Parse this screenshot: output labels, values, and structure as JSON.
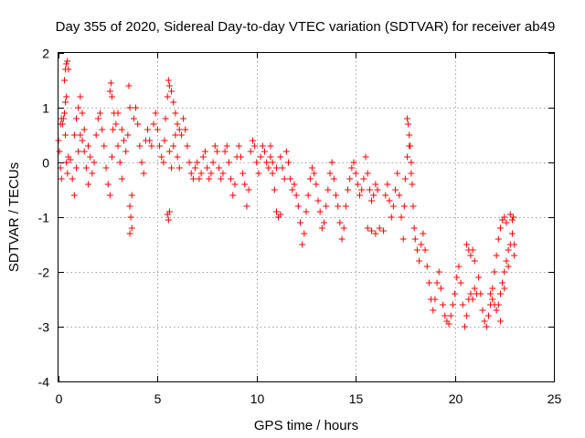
{
  "chart_data": {
    "type": "scatter",
    "title": "Day 355 of 2020, Sidereal Day-to-day VTEC variation (SDTVAR) for receiver ab49",
    "xlabel": "GPS time / hours",
    "ylabel": "SDTVAR / TECUs",
    "xlim": [
      0,
      25
    ],
    "ylim": [
      -4,
      2
    ],
    "xticks": [
      0,
      5,
      10,
      15,
      20,
      25
    ],
    "yticks": [
      -4,
      -3,
      -2,
      -1,
      0,
      1,
      2
    ],
    "grid": true,
    "marker": "plus",
    "series": [
      {
        "name": "SDTVAR",
        "color": "#ff0000",
        "points": [
          [
            0.0,
            0.4
          ],
          [
            0.05,
            0.2
          ],
          [
            0.1,
            -0.1
          ],
          [
            0.15,
            -0.3
          ],
          [
            0.1,
            0.7
          ],
          [
            0.15,
            0.8
          ],
          [
            0.2,
            0.7
          ],
          [
            0.25,
            0.8
          ],
          [
            0.3,
            0.9
          ],
          [
            0.35,
            0.5
          ],
          [
            0.35,
            1.1
          ],
          [
            0.4,
            1.2
          ],
          [
            0.3,
            1.5
          ],
          [
            0.35,
            1.7
          ],
          [
            0.4,
            1.8
          ],
          [
            0.45,
            1.85
          ],
          [
            0.5,
            1.7
          ],
          [
            0.4,
            0.0
          ],
          [
            0.45,
            -0.2
          ],
          [
            0.5,
            0.1
          ],
          [
            0.6,
            0.05
          ],
          [
            0.7,
            -0.3
          ],
          [
            0.8,
            -0.6
          ],
          [
            0.9,
            -0.1
          ],
          [
            1.0,
            0.2
          ],
          [
            1.1,
            0.5
          ],
          [
            1.2,
            0.4
          ],
          [
            1.3,
            0.2
          ],
          [
            1.4,
            -0.1
          ],
          [
            1.5,
            -0.4
          ],
          [
            0.8,
            0.5
          ],
          [
            0.9,
            0.8
          ],
          [
            1.0,
            1.0
          ],
          [
            1.1,
            1.2
          ],
          [
            1.2,
            0.9
          ],
          [
            1.3,
            0.6
          ],
          [
            1.5,
            0.3
          ],
          [
            1.6,
            0.1
          ],
          [
            1.7,
            -0.2
          ],
          [
            1.8,
            0.0
          ],
          [
            1.9,
            0.5
          ],
          [
            2.0,
            0.8
          ],
          [
            2.1,
            0.9
          ],
          [
            2.2,
            0.6
          ],
          [
            2.3,
            0.3
          ],
          [
            2.4,
            -0.1
          ],
          [
            2.5,
            -0.4
          ],
          [
            2.6,
            -0.6
          ],
          [
            2.7,
            0.1
          ],
          [
            2.75,
            0.6
          ],
          [
            2.6,
            1.3
          ],
          [
            2.65,
            1.45
          ],
          [
            2.7,
            1.2
          ],
          [
            2.8,
            0.9
          ],
          [
            2.9,
            0.7
          ],
          [
            3.0,
            0.3
          ],
          [
            3.1,
            0.0
          ],
          [
            3.2,
            -0.3
          ],
          [
            3.0,
            0.9
          ],
          [
            3.2,
            0.6
          ],
          [
            3.3,
            0.4
          ],
          [
            3.4,
            0.2
          ],
          [
            3.5,
            0.5
          ],
          [
            3.55,
            1.4
          ],
          [
            3.6,
            1.0
          ],
          [
            3.6,
            -0.8
          ],
          [
            3.65,
            -1.0
          ],
          [
            3.7,
            -0.6
          ],
          [
            3.6,
            -1.3
          ],
          [
            3.7,
            -1.2
          ],
          [
            3.8,
            0.8
          ],
          [
            3.9,
            1.0
          ],
          [
            4.0,
            0.7
          ],
          [
            4.1,
            0.3
          ],
          [
            4.2,
            0.0
          ],
          [
            4.3,
            -0.2
          ],
          [
            4.4,
            0.4
          ],
          [
            4.5,
            0.6
          ],
          [
            4.6,
            0.4
          ],
          [
            4.7,
            0.3
          ],
          [
            4.8,
            0.7
          ],
          [
            4.9,
            0.9
          ],
          [
            5.0,
            0.6
          ],
          [
            5.1,
            0.3
          ],
          [
            5.2,
            0.1
          ],
          [
            5.3,
            0.0
          ],
          [
            5.35,
            0.4
          ],
          [
            5.4,
            0.8
          ],
          [
            5.5,
            1.2
          ],
          [
            5.55,
            1.5
          ],
          [
            5.6,
            1.4
          ],
          [
            5.7,
            1.3
          ],
          [
            5.8,
            1.1
          ],
          [
            5.9,
            0.9
          ],
          [
            6.0,
            0.7
          ],
          [
            6.1,
            0.6
          ],
          [
            6.2,
            0.5
          ],
          [
            6.3,
            0.8
          ],
          [
            6.4,
            0.6
          ],
          [
            6.5,
            0.3
          ],
          [
            5.5,
            -0.95
          ],
          [
            5.55,
            -1.05
          ],
          [
            5.6,
            -0.9
          ],
          [
            5.6,
            0.2
          ],
          [
            5.7,
            -0.1
          ],
          [
            5.8,
            0.3
          ],
          [
            5.9,
            0.5
          ],
          [
            6.0,
            0.1
          ],
          [
            6.1,
            -0.1
          ],
          [
            6.6,
            0.0
          ],
          [
            6.7,
            -0.2
          ],
          [
            6.8,
            -0.3
          ],
          [
            6.9,
            -0.1
          ],
          [
            7.0,
            0.0
          ],
          [
            7.1,
            -0.3
          ],
          [
            7.2,
            -0.2
          ],
          [
            7.3,
            0.1
          ],
          [
            7.4,
            0.2
          ],
          [
            7.5,
            -0.1
          ],
          [
            7.6,
            -0.3
          ],
          [
            7.7,
            -0.2
          ],
          [
            7.8,
            0.0
          ],
          [
            7.9,
            0.3
          ],
          [
            8.0,
            0.2
          ],
          [
            8.1,
            -0.1
          ],
          [
            8.2,
            -0.3
          ],
          [
            8.3,
            -0.2
          ],
          [
            8.4,
            0.2
          ],
          [
            8.5,
            0.3
          ],
          [
            8.6,
            0.0
          ],
          [
            8.7,
            -0.3
          ],
          [
            8.8,
            -0.6
          ],
          [
            8.9,
            -0.4
          ],
          [
            9.0,
            0.1
          ],
          [
            9.1,
            0.3
          ],
          [
            9.2,
            0.1
          ],
          [
            9.3,
            -0.2
          ],
          [
            9.4,
            -0.4
          ],
          [
            9.5,
            -0.8
          ],
          [
            9.6,
            -0.5
          ],
          [
            9.7,
            0.2
          ],
          [
            9.8,
            0.4
          ],
          [
            9.9,
            0.3
          ],
          [
            10.0,
            0.0
          ],
          [
            10.1,
            -0.2
          ],
          [
            10.2,
            0.1
          ],
          [
            10.3,
            0.3
          ],
          [
            10.4,
            0.2
          ],
          [
            10.5,
            0.0
          ],
          [
            10.6,
            -0.1
          ],
          [
            10.7,
            0.1
          ],
          [
            10.8,
            -0.2
          ],
          [
            10.9,
            -0.5
          ],
          [
            11.0,
            -0.9
          ],
          [
            11.1,
            -1.0
          ],
          [
            11.2,
            -0.95
          ],
          [
            10.7,
            0.3
          ],
          [
            10.8,
            0.0
          ],
          [
            11.0,
            -0.1
          ],
          [
            11.2,
            0.1
          ],
          [
            11.3,
            -0.1
          ],
          [
            11.4,
            -0.3
          ],
          [
            11.5,
            0.2
          ],
          [
            11.6,
            0.0
          ],
          [
            11.7,
            -0.3
          ],
          [
            11.8,
            -0.5
          ],
          [
            11.9,
            -0.4
          ],
          [
            12.0,
            -0.6
          ],
          [
            12.1,
            -0.8
          ],
          [
            12.2,
            -1.1
          ],
          [
            12.3,
            -1.5
          ],
          [
            12.4,
            -1.3
          ],
          [
            12.5,
            -0.9
          ],
          [
            12.6,
            -0.6
          ],
          [
            12.7,
            -0.3
          ],
          [
            12.8,
            -0.1
          ],
          [
            12.9,
            -0.2
          ],
          [
            13.0,
            -0.4
          ],
          [
            13.1,
            -0.7
          ],
          [
            13.2,
            -0.9
          ],
          [
            13.3,
            -1.2
          ],
          [
            13.4,
            -1.1
          ],
          [
            13.5,
            -0.8
          ],
          [
            13.6,
            -0.5
          ],
          [
            13.7,
            -0.2
          ],
          [
            13.8,
            0.0
          ],
          [
            13.9,
            -0.3
          ],
          [
            14.0,
            -0.6
          ],
          [
            14.1,
            -0.8
          ],
          [
            14.2,
            -1.1
          ],
          [
            14.3,
            -1.4
          ],
          [
            14.4,
            -1.2
          ],
          [
            14.5,
            -0.8
          ],
          [
            14.6,
            -0.5
          ],
          [
            14.7,
            -0.3
          ],
          [
            14.8,
            -0.1
          ],
          [
            14.9,
            0.0
          ],
          [
            15.0,
            -0.2
          ],
          [
            15.1,
            -0.4
          ],
          [
            15.2,
            -0.6
          ],
          [
            15.3,
            -0.5
          ],
          [
            15.4,
            -0.3
          ],
          [
            15.5,
            0.1
          ],
          [
            15.6,
            -0.2
          ],
          [
            15.7,
            -0.5
          ],
          [
            15.8,
            -0.7
          ],
          [
            15.9,
            -0.6
          ],
          [
            16.0,
            -0.4
          ],
          [
            16.1,
            -0.5
          ],
          [
            15.6,
            -1.2
          ],
          [
            15.8,
            -1.25
          ],
          [
            16.0,
            -1.3
          ],
          [
            16.2,
            -1.2
          ],
          [
            16.4,
            -1.25
          ],
          [
            16.5,
            -0.6
          ],
          [
            16.6,
            -0.4
          ],
          [
            16.7,
            -0.7
          ],
          [
            16.8,
            -1.0
          ],
          [
            16.9,
            -0.8
          ],
          [
            17.0,
            -0.5
          ],
          [
            17.1,
            -0.2
          ],
          [
            17.2,
            -0.6
          ],
          [
            17.3,
            -1.0
          ],
          [
            17.4,
            -1.4
          ],
          [
            17.45,
            -0.8
          ],
          [
            17.5,
            -0.3
          ],
          [
            17.6,
            0.1
          ],
          [
            17.7,
            0.3
          ],
          [
            17.8,
            -0.2
          ],
          [
            17.6,
            0.8
          ],
          [
            17.65,
            0.7
          ],
          [
            17.7,
            0.5
          ],
          [
            17.75,
            0.3
          ],
          [
            17.8,
            0.0
          ],
          [
            17.85,
            -0.4
          ],
          [
            17.9,
            -0.8
          ],
          [
            17.95,
            -1.2
          ],
          [
            18.0,
            -1.4
          ],
          [
            18.1,
            -1.6
          ],
          [
            18.2,
            -1.8
          ],
          [
            18.3,
            -1.5
          ],
          [
            18.4,
            -1.3
          ],
          [
            18.5,
            -1.6
          ],
          [
            18.6,
            -1.9
          ],
          [
            18.7,
            -2.2
          ],
          [
            18.8,
            -2.5
          ],
          [
            18.9,
            -2.7
          ],
          [
            19.0,
            -2.5
          ],
          [
            19.1,
            -2.2
          ],
          [
            19.2,
            -2.0
          ],
          [
            19.3,
            -2.3
          ],
          [
            19.4,
            -2.6
          ],
          [
            19.5,
            -2.8
          ],
          [
            19.6,
            -2.9
          ],
          [
            19.7,
            -2.95
          ],
          [
            19.8,
            -2.8
          ],
          [
            19.9,
            -2.6
          ],
          [
            20.0,
            -2.4
          ],
          [
            20.1,
            -2.1
          ],
          [
            20.2,
            -1.9
          ],
          [
            20.3,
            -2.2
          ],
          [
            20.4,
            -2.6
          ],
          [
            20.5,
            -3.0
          ],
          [
            20.6,
            -2.8
          ],
          [
            20.7,
            -2.5
          ],
          [
            20.8,
            -2.4
          ],
          [
            20.9,
            -2.5
          ],
          [
            21.0,
            -2.3
          ],
          [
            21.1,
            -2.4
          ],
          [
            20.6,
            -1.5
          ],
          [
            20.7,
            -1.6
          ],
          [
            20.8,
            -1.7
          ],
          [
            20.9,
            -1.6
          ],
          [
            21.0,
            -1.8
          ],
          [
            21.2,
            -2.1
          ],
          [
            21.3,
            -2.4
          ],
          [
            21.4,
            -2.7
          ],
          [
            21.5,
            -2.9
          ],
          [
            21.6,
            -3.0
          ],
          [
            21.7,
            -2.8
          ],
          [
            21.8,
            -2.6
          ],
          [
            21.9,
            -2.3
          ],
          [
            22.0,
            -2.0
          ],
          [
            22.1,
            -1.7
          ],
          [
            22.2,
            -1.4
          ],
          [
            22.3,
            -1.2
          ],
          [
            22.4,
            -1.05
          ],
          [
            22.5,
            -1.0
          ],
          [
            22.6,
            -1.1
          ],
          [
            21.8,
            -2.4
          ],
          [
            21.9,
            -2.5
          ],
          [
            22.0,
            -2.6
          ],
          [
            22.1,
            -2.7
          ],
          [
            22.2,
            -2.6
          ],
          [
            22.3,
            -2.4
          ],
          [
            22.4,
            -2.2
          ],
          [
            22.5,
            -2.0
          ],
          [
            22.6,
            -1.8
          ],
          [
            22.7,
            -1.6
          ],
          [
            22.8,
            -1.5
          ],
          [
            22.9,
            -1.3
          ],
          [
            22.95,
            -1.0
          ],
          [
            22.8,
            -0.95
          ],
          [
            22.9,
            -1.05
          ],
          [
            23.0,
            -1.5
          ],
          [
            23.0,
            -1.7
          ],
          [
            22.7,
            -1.9
          ],
          [
            22.5,
            -2.3
          ],
          [
            22.3,
            -2.9
          ]
        ]
      }
    ]
  }
}
